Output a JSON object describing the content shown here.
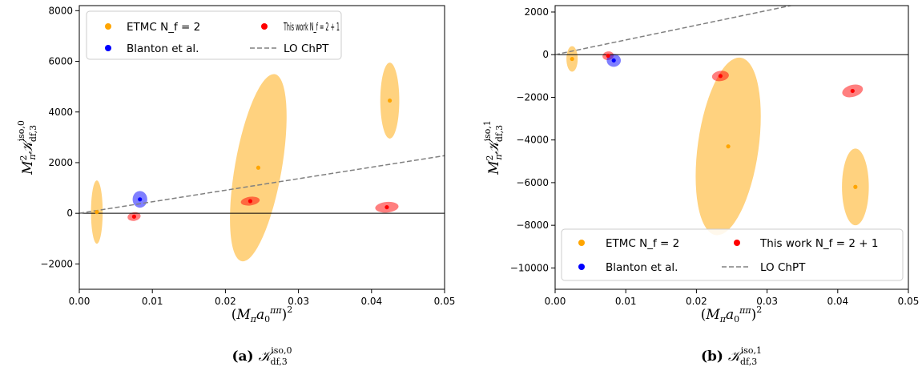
{
  "colors": {
    "etmc": "#ffa500",
    "this_work": "#ff0000",
    "blanton": "#0000ff",
    "lo_chpt": "#808080"
  },
  "chart_data": [
    {
      "type": "scatter",
      "panel": "a",
      "caption": "(a) K_df,3^iso,0",
      "xlabel": "(M_π a_0^ππ)^2",
      "ylabel": "M_π^2 K_df,3^iso,0",
      "xlim": [
        0,
        0.05
      ],
      "ylim": [
        -3000,
        8200
      ],
      "xticks": [
        0.0,
        0.01,
        0.02,
        0.03,
        0.04,
        0.05
      ],
      "xtick_labels": [
        "0.00",
        "0.01",
        "0.02",
        "0.03",
        "0.04",
        "0.05"
      ],
      "yticks": [
        -2000,
        0,
        2000,
        4000,
        6000,
        8000
      ],
      "ytick_labels": [
        "−2000",
        "0",
        "2000",
        "4000",
        "6000",
        "8000"
      ],
      "grid": false,
      "legend_placement": "top-left",
      "legend": [
        {
          "label": "ETMC N_f = 2",
          "series": "etmc"
        },
        {
          "label": "This work N_f = 2 + 1",
          "series": "this_work"
        },
        {
          "label": "Blanton et al.",
          "series": "blanton"
        },
        {
          "label": "LO ChPT",
          "series": "lo_chpt"
        }
      ],
      "series": [
        {
          "name": "ETMC N_f = 2",
          "key": "etmc",
          "points": [
            {
              "x": 0.0024,
              "y": 50,
              "x_err": 0.0008,
              "y_err": 1250,
              "tilt": 0
            },
            {
              "x": 0.0245,
              "y": 1800,
              "x_err": 0.0032,
              "y_err": 3750,
              "tilt": 10
            },
            {
              "x": 0.0425,
              "y": 4450,
              "x_err": 0.0013,
              "y_err": 1500,
              "tilt": 0
            }
          ]
        },
        {
          "name": "This work N_f = 2 + 1",
          "key": "this_work",
          "points": [
            {
              "x": 0.0075,
              "y": -130,
              "x_err": 0.0009,
              "y_err": 170,
              "tilt": -10
            },
            {
              "x": 0.0234,
              "y": 480,
              "x_err": 0.0013,
              "y_err": 170,
              "tilt": -8
            },
            {
              "x": 0.0421,
              "y": 240,
              "x_err": 0.0016,
              "y_err": 210,
              "tilt": -5
            }
          ]
        },
        {
          "name": "Blanton et al.",
          "key": "blanton",
          "points": [
            {
              "x": 0.0083,
              "y": 550,
              "x_err": 0.001,
              "y_err": 330,
              "tilt": 0
            }
          ]
        }
      ],
      "lo_line": {
        "name": "LO ChPT",
        "slope": 45500,
        "intercept": 0
      }
    },
    {
      "type": "scatter",
      "panel": "b",
      "caption": "(b) K_df,3^iso,1",
      "xlabel": "(M_π a_0^ππ)^2",
      "ylabel": "M_π^2 K_df,3^iso,1",
      "xlim": [
        0,
        0.05
      ],
      "ylim": [
        -11000,
        2300
      ],
      "xticks": [
        0.0,
        0.01,
        0.02,
        0.03,
        0.04,
        0.05
      ],
      "xtick_labels": [
        "0.00",
        "0.01",
        "0.02",
        "0.03",
        "0.04",
        "0.05"
      ],
      "yticks": [
        -10000,
        -8000,
        -6000,
        -4000,
        -2000,
        0,
        2000
      ],
      "ytick_labels": [
        "−10000",
        "−8000",
        "−6000",
        "−4000",
        "−2000",
        "0",
        "2000"
      ],
      "grid": false,
      "legend_placement": "bottom",
      "legend": [
        {
          "label": "ETMC N_f = 2",
          "series": "etmc"
        },
        {
          "label": "This work N_f = 2 + 1",
          "series": "this_work"
        },
        {
          "label": "Blanton et al.",
          "series": "blanton"
        },
        {
          "label": "LO ChPT",
          "series": "lo_chpt"
        }
      ],
      "series": [
        {
          "name": "ETMC N_f = 2",
          "key": "etmc",
          "points": [
            {
              "x": 0.0024,
              "y": -200,
              "x_err": 0.0008,
              "y_err": 600,
              "tilt": 0
            },
            {
              "x": 0.0245,
              "y": -4300,
              "x_err": 0.0043,
              "y_err": 4200,
              "tilt": 8
            },
            {
              "x": 0.0425,
              "y": -6200,
              "x_err": 0.0019,
              "y_err": 1800,
              "tilt": 0
            }
          ]
        },
        {
          "name": "This work N_f = 2 + 1",
          "key": "this_work",
          "points": [
            {
              "x": 0.0075,
              "y": -50,
              "x_err": 0.0008,
              "y_err": 200,
              "tilt": -10
            },
            {
              "x": 0.0234,
              "y": -1000,
              "x_err": 0.0012,
              "y_err": 240,
              "tilt": -8
            },
            {
              "x": 0.0421,
              "y": -1700,
              "x_err": 0.0015,
              "y_err": 280,
              "tilt": -15
            }
          ]
        },
        {
          "name": "Blanton et al.",
          "key": "blanton",
          "points": [
            {
              "x": 0.0083,
              "y": -270,
              "x_err": 0.001,
              "y_err": 300,
              "tilt": 0
            }
          ]
        }
      ],
      "lo_line": {
        "name": "LO ChPT",
        "slope": 69000,
        "intercept": 0
      }
    }
  ]
}
